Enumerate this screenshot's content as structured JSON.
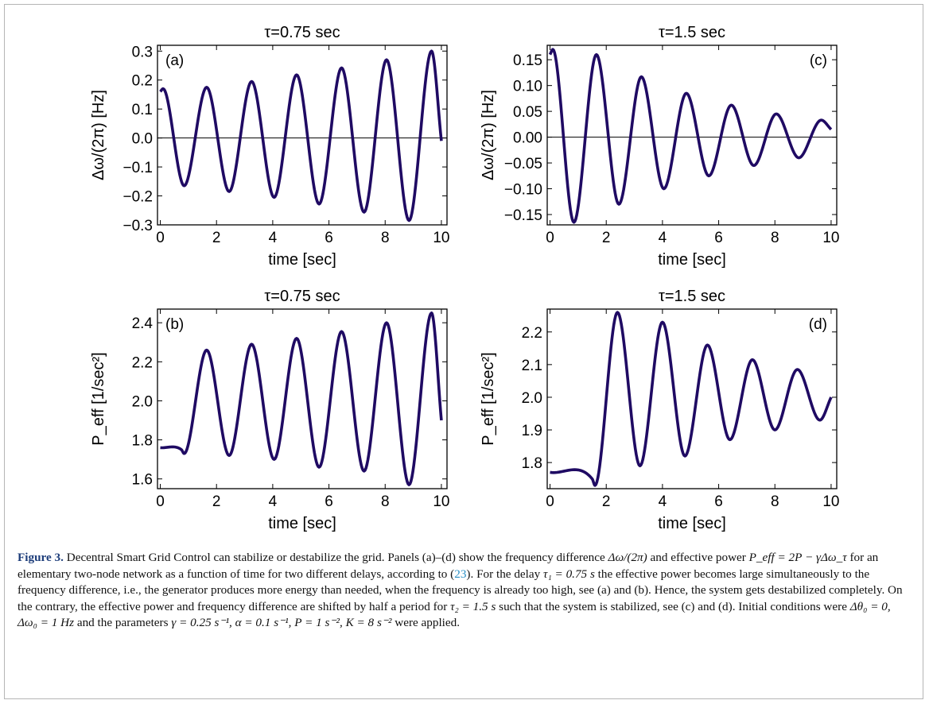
{
  "colors": {
    "line": "#1f0a63",
    "axis": "#000000",
    "caption_label": "#1d3d7a",
    "link": "#2a8fc4"
  },
  "chart_data": [
    {
      "type": "line",
      "panel": "(a)",
      "title": "τ=0.75 sec",
      "xlabel": "time [sec]",
      "ylabel": "Δω/(2π) [Hz]",
      "xlim": [
        -0.1,
        10.2
      ],
      "ylim": [
        -0.3,
        0.32
      ],
      "xticks": [
        0,
        2,
        4,
        6,
        8,
        10
      ],
      "xtick_labels": [
        "0",
        "2",
        "4",
        "6",
        "8",
        "10"
      ],
      "yticks": [
        -0.3,
        -0.2,
        -0.1,
        0.0,
        0.1,
        0.2,
        0.3
      ],
      "ytick_labels": [
        "−0.3",
        "−0.2",
        "−0.1",
        "0.0",
        "0.1",
        "0.2",
        "0.3"
      ],
      "zero_line": true,
      "legend": "none",
      "series": [
        {
          "x": [
            0,
            0.1,
            0.85,
            1.65,
            2.45,
            3.25,
            4.05,
            4.85,
            5.65,
            6.45,
            7.25,
            8.05,
            8.85,
            9.65,
            10.0
          ],
          "y": [
            0.16,
            0.17,
            -0.165,
            0.175,
            -0.185,
            0.195,
            -0.205,
            0.218,
            -0.228,
            0.242,
            -0.256,
            0.27,
            -0.285,
            0.3,
            -0.01
          ]
        }
      ]
    },
    {
      "type": "line",
      "panel": "(c)",
      "title": "τ=1.5 sec",
      "xlabel": "time [sec]",
      "ylabel": "Δω/(2π) [Hz]",
      "xlim": [
        -0.1,
        10.2
      ],
      "ylim": [
        -0.17,
        0.178
      ],
      "xticks": [
        0,
        2,
        4,
        6,
        8,
        10
      ],
      "xtick_labels": [
        "0",
        "2",
        "4",
        "6",
        "8",
        "10"
      ],
      "yticks": [
        -0.15,
        -0.1,
        -0.05,
        0.0,
        0.05,
        0.1,
        0.15
      ],
      "ytick_labels": [
        "−0.15",
        "−0.10",
        "−0.05",
        "0.00",
        "0.05",
        "0.10",
        "0.15"
      ],
      "zero_line": true,
      "legend": "none",
      "series": [
        {
          "x": [
            0,
            0.1,
            0.85,
            1.65,
            2.45,
            3.25,
            4.05,
            4.85,
            5.65,
            6.45,
            7.25,
            8.05,
            8.85,
            9.65,
            10.0
          ],
          "y": [
            0.16,
            0.17,
            -0.165,
            0.16,
            -0.13,
            0.117,
            -0.1,
            0.085,
            -0.075,
            0.062,
            -0.055,
            0.045,
            -0.04,
            0.033,
            0.015
          ]
        }
      ]
    },
    {
      "type": "line",
      "panel": "(b)",
      "title": "τ=0.75 sec",
      "xlabel": "time [sec]",
      "ylabel": "P_eff [1/sec²]",
      "xlim": [
        -0.1,
        10.2
      ],
      "ylim": [
        1.55,
        2.47
      ],
      "xticks": [
        0,
        2,
        4,
        6,
        8,
        10
      ],
      "xtick_labels": [
        "0",
        "2",
        "4",
        "6",
        "8",
        "10"
      ],
      "yticks": [
        1.6,
        1.8,
        2.0,
        2.2,
        2.4
      ],
      "ytick_labels": [
        "1.6",
        "1.8",
        "2.0",
        "2.2",
        "2.4"
      ],
      "zero_line": false,
      "legend": "none",
      "series": [
        {
          "x": [
            0,
            0.75,
            0.85,
            1.65,
            2.45,
            3.25,
            4.05,
            4.85,
            5.65,
            6.45,
            7.25,
            8.05,
            8.85,
            9.65,
            10.0
          ],
          "y": [
            1.76,
            1.75,
            1.73,
            2.26,
            1.72,
            2.29,
            1.7,
            2.32,
            1.66,
            2.355,
            1.64,
            2.4,
            1.57,
            2.45,
            1.9
          ]
        }
      ]
    },
    {
      "type": "line",
      "panel": "(d)",
      "title": "τ=1.5 sec",
      "xlabel": "time [sec]",
      "ylabel": "P_eff [1/sec²]",
      "xlim": [
        -0.1,
        10.2
      ],
      "ylim": [
        1.72,
        2.27
      ],
      "xticks": [
        0,
        2,
        4,
        6,
        8,
        10
      ],
      "xtick_labels": [
        "0",
        "2",
        "4",
        "6",
        "8",
        "10"
      ],
      "yticks": [
        1.8,
        1.9,
        2.0,
        2.1,
        2.2
      ],
      "ytick_labels": [
        "1.8",
        "1.9",
        "2.0",
        "2.1",
        "2.2"
      ],
      "zero_line": false,
      "legend": "none",
      "series": [
        {
          "x": [
            0,
            1.5,
            1.6,
            2.4,
            3.2,
            4.0,
            4.8,
            5.6,
            6.4,
            7.2,
            8.0,
            8.8,
            9.6,
            10.0
          ],
          "y": [
            1.77,
            1.75,
            1.73,
            2.26,
            1.79,
            2.23,
            1.82,
            2.16,
            1.87,
            2.115,
            1.9,
            2.085,
            1.93,
            2.0
          ]
        }
      ]
    }
  ],
  "caption": {
    "label": "Figure 3.",
    "p1": " Decentral Smart Grid Control can stabilize or destabilize the grid. Panels (a)–(d) show the frequency difference ",
    "m1": "Δω/(2π)",
    "p2": " and effective power ",
    "m2": "P_eff = 2P − γΔω_τ",
    "p3": " for an elementary two-node network as a function of time for two different delays, according to (",
    "ref": "23",
    "p4": "). For the delay ",
    "m3": "τ₁ = 0.75 s",
    "p5": " the effective power becomes large simultaneously to the frequency difference, i.e., the generator produces more energy than needed, when the frequency is already too high, see (a) and (b). Hence, the system gets destabilized completely. On the contrary, the effective power and frequency difference are shifted by half a period for ",
    "m4": "τ₂ = 1.5 s",
    "p6": " such that the system is stabilized, see (c) and (d). Initial conditions were ",
    "m5": "Δθ₀ = 0, Δω₀ = 1 Hz",
    "p7": " and the parameters ",
    "m6": "γ = 0.25 s⁻¹, α = 0.1 s⁻¹, P = 1 s⁻², K = 8 s⁻²",
    "p8": " were applied."
  }
}
